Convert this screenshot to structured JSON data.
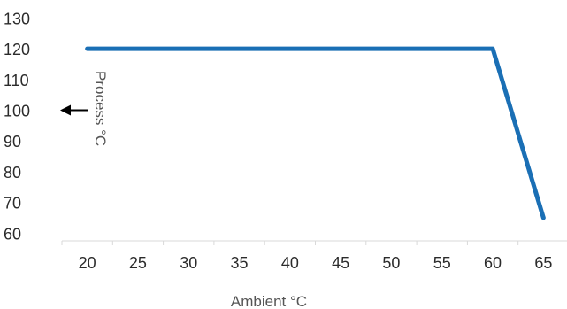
{
  "chart_data": {
    "type": "line",
    "xlabel": "Ambient °C",
    "ylabel": "Process °C",
    "x_ticks": [
      20,
      25,
      30,
      35,
      40,
      45,
      50,
      55,
      60,
      65
    ],
    "y_ticks": [
      60,
      70,
      80,
      90,
      100,
      110,
      120,
      130
    ],
    "xlim": [
      17.5,
      67.5
    ],
    "ylim": [
      57.5,
      131
    ],
    "grid": false,
    "series": [
      {
        "x": [
          20,
          60,
          65
        ],
        "y": [
          120,
          120,
          65
        ],
        "color": "#1a6fb5"
      }
    ],
    "annotations": [
      {
        "type": "arrow",
        "direction": "left",
        "at_y": 100,
        "color": "#000000"
      }
    ]
  }
}
